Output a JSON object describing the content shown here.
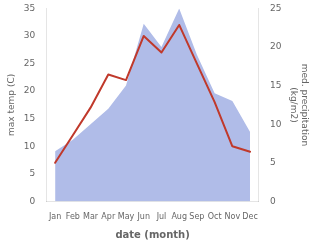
{
  "chart_data": {
    "type": "line",
    "categories": [
      "Jan",
      "Feb",
      "Mar",
      "Apr",
      "May",
      "Jun",
      "Jul",
      "Aug",
      "Sep",
      "Oct",
      "Nov",
      "Dec"
    ],
    "series": [
      {
        "type": "line",
        "color": "#c0392b",
        "values": [
          7,
          12,
          17,
          23,
          22,
          30,
          27,
          32,
          25,
          18,
          10,
          9
        ]
      },
      {
        "type": "area",
        "color": "#b0bce8",
        "axis": "y2",
        "values": [
          6.5,
          8,
          10,
          12,
          15,
          23,
          20,
          25,
          19,
          14,
          13,
          9
        ]
      }
    ],
    "xlabel": "date (month)",
    "ylabel": "max temp (C)",
    "y2label": "med. precipitation\n(kg/m2)",
    "ylim": [
      0,
      35
    ],
    "yticks": [
      0,
      5,
      10,
      15,
      20,
      25,
      30,
      35
    ],
    "y2lim": [
      0,
      25
    ],
    "y2ticks": [
      0,
      5,
      10,
      15,
      20,
      25
    ],
    "grid": false
  }
}
